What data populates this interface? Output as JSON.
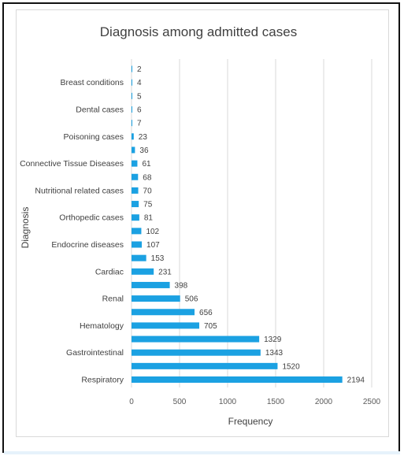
{
  "chart_data": {
    "type": "bar",
    "orientation": "horizontal",
    "title": "Diagnosis among admitted cases",
    "xlabel": "Frequency",
    "ylabel": "Diagnosis",
    "xlim": [
      0,
      2500
    ],
    "xticks": [
      0,
      500,
      1000,
      1500,
      2000,
      2500
    ],
    "grid": true,
    "bar_color": "#1ba1e2",
    "categories_bottom_to_top": [
      "Respiratory",
      "",
      "Gastrointestinal",
      "",
      "Hematology",
      "",
      "Renal",
      "",
      "Cardiac",
      "",
      "Endocrine diseases",
      "",
      "Orthopedic cases",
      "",
      "Nutritional related cases",
      "",
      "Connective Tissue Diseases",
      "",
      "Poisoning cases",
      "",
      "Dental cases",
      "",
      "Breast conditions",
      ""
    ],
    "values_bottom_to_top": [
      2194,
      1520,
      1343,
      1329,
      705,
      656,
      506,
      398,
      231,
      153,
      107,
      102,
      81,
      75,
      70,
      68,
      61,
      36,
      23,
      7,
      6,
      5,
      4,
      2
    ]
  }
}
